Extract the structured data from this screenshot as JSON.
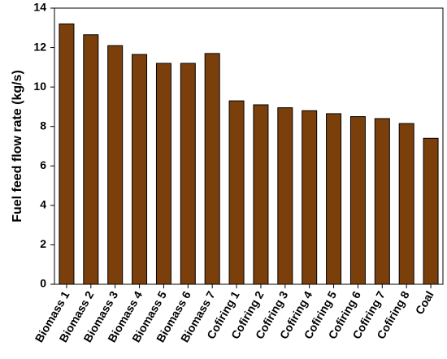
{
  "chart_data": {
    "type": "bar",
    "y_label": "Fuel feed flow rate (kg/s)",
    "categories": [
      "Biomass 1",
      "Biomass 2",
      "Biomass 3",
      "Biomass 4",
      "Biomass 5",
      "Biomass 6",
      "Biomass 7",
      "Cofiring 1",
      "Cofiring 2",
      "Cofiring 3",
      "Cofiring 4",
      "Cofiring 5",
      "Cofiring 6",
      "Cofiring 7",
      "Cofiring 8",
      "Coal"
    ],
    "values": [
      13.2,
      12.65,
      12.1,
      11.65,
      11.2,
      11.2,
      11.7,
      9.3,
      9.1,
      8.95,
      8.8,
      8.65,
      8.5,
      8.4,
      8.15,
      7.4
    ],
    "color": "#7b3f0c",
    "ylim": [
      0,
      14
    ],
    "yticks": [
      0,
      2,
      4,
      6,
      8,
      10,
      12,
      14
    ]
  }
}
